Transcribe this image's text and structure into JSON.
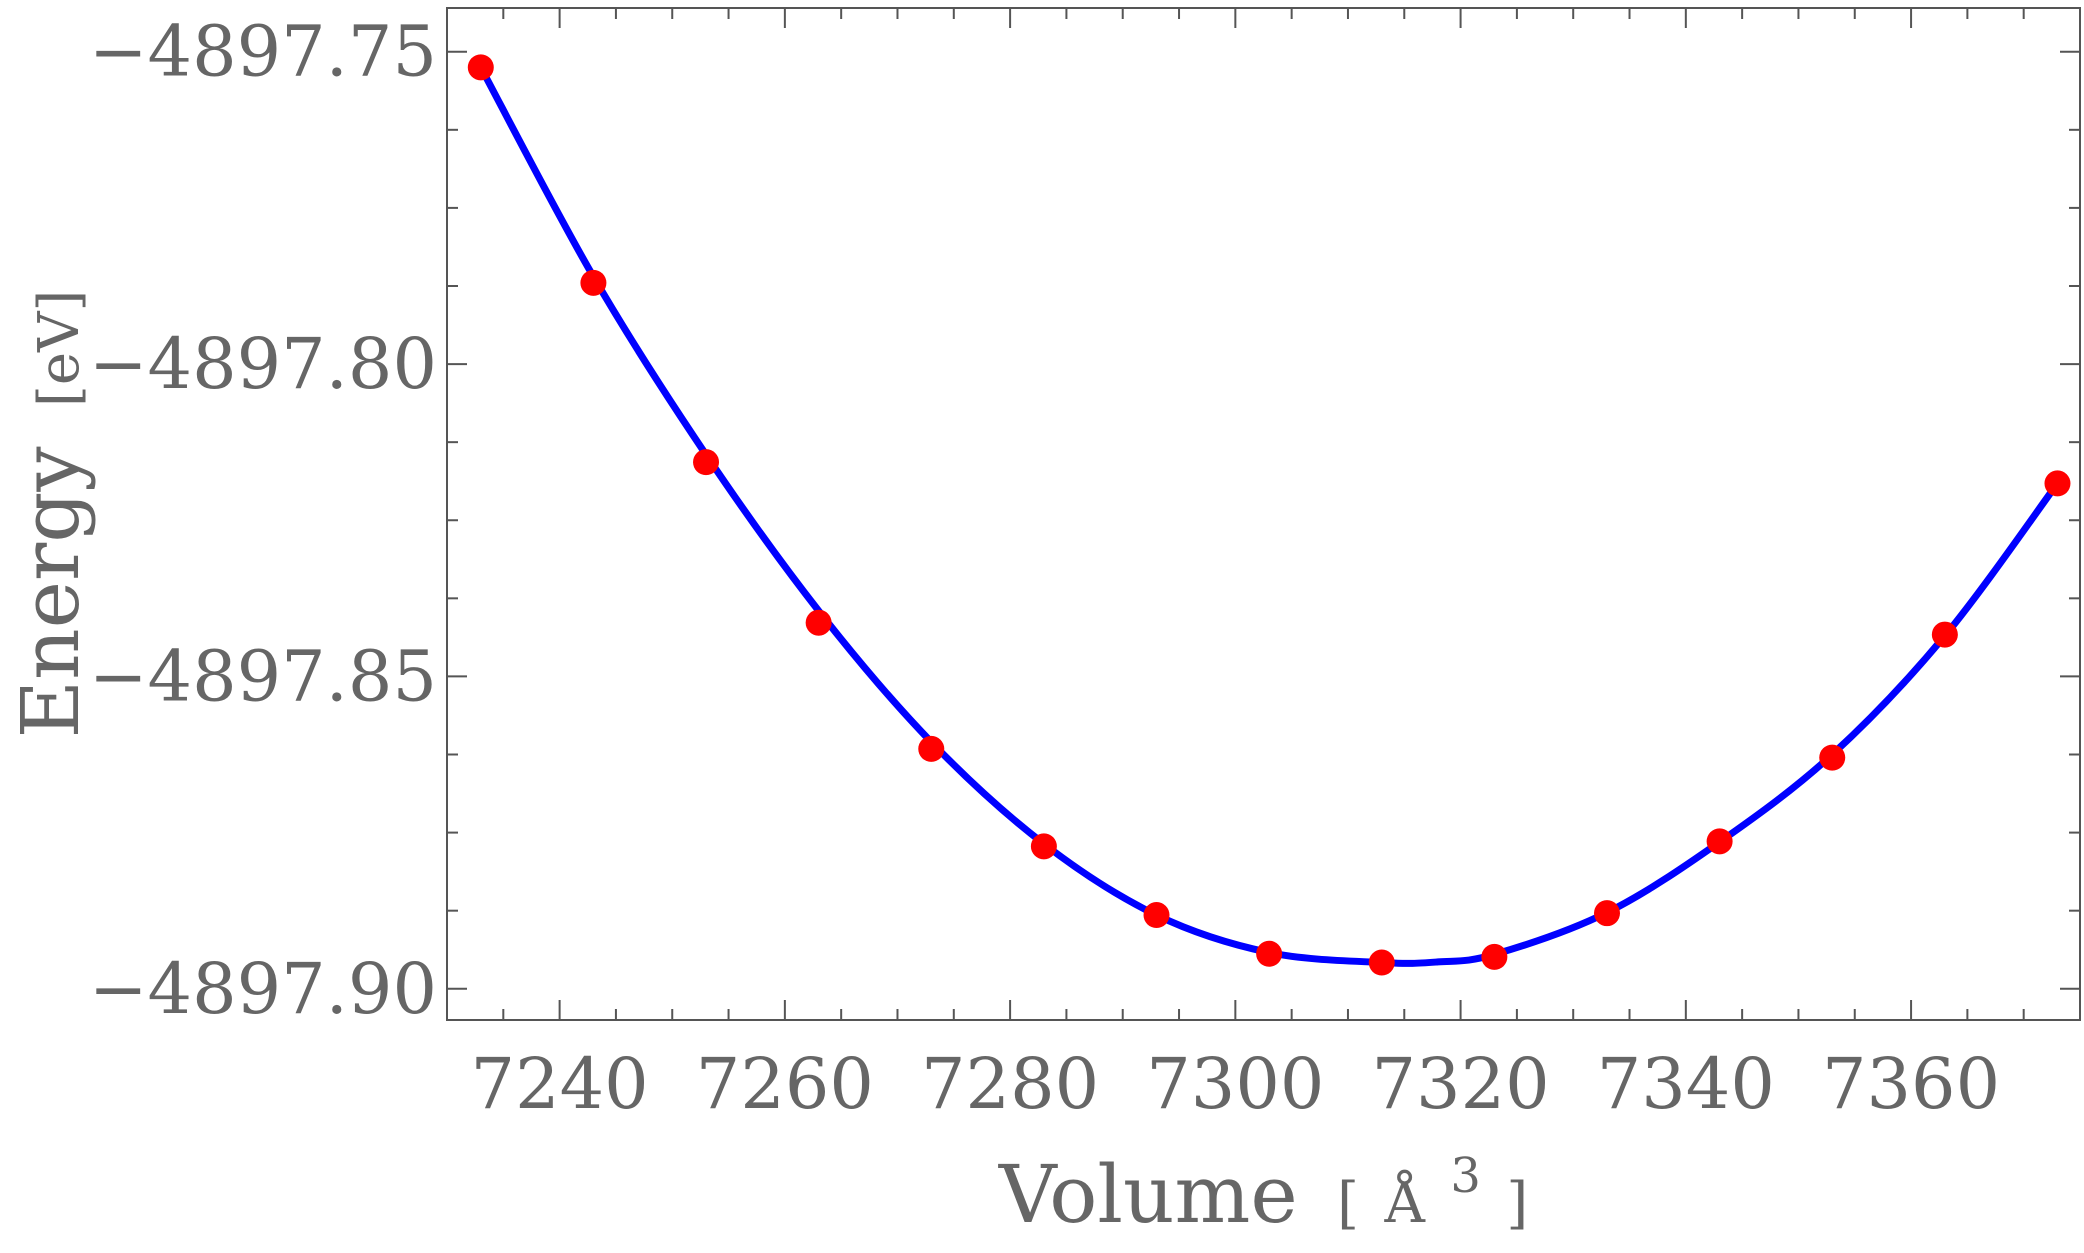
{
  "chart_data": {
    "type": "scatter",
    "title": "",
    "xlabel": "Volume",
    "xlabel_unit_open": "[",
    "xlabel_unit": "Å",
    "xlabel_unit_sup": "3",
    "xlabel_unit_close": "]",
    "ylabel": "Energy",
    "ylabel_unit": "[eV]",
    "xlim": [
      7230,
      7375
    ],
    "ylim": [
      -4897.905,
      -4897.743
    ],
    "x_ticks": [
      7240,
      7260,
      7280,
      7300,
      7320,
      7340,
      7360
    ],
    "x_tick_labels": [
      "7240",
      "7260",
      "7280",
      "7300",
      "7320",
      "7340",
      "7360"
    ],
    "y_ticks": [
      -4897.75,
      -4897.8,
      -4897.85,
      -4897.9
    ],
    "y_tick_labels": [
      "−4897.75",
      "−4897.80",
      "−4897.85",
      "−4897.90"
    ],
    "grid": false,
    "legend": "none",
    "series": [
      {
        "kind": "points",
        "color": "#ff0000",
        "x": [
          7233,
          7243,
          7253,
          7263,
          7273,
          7283,
          7293,
          7303,
          7313,
          7323,
          7333,
          7343,
          7353,
          7363,
          7373
        ],
        "y": [
          -4897.7525,
          -4897.787,
          -4897.8157,
          -4897.8414,
          -4897.8616,
          -4897.8772,
          -4897.8882,
          -4897.8944,
          -4897.8958,
          -4897.8949,
          -4897.8879,
          -4897.8764,
          -4897.863,
          -4897.8433,
          -4897.8191
        ]
      },
      {
        "kind": "fit-curve",
        "color": "#0000ff",
        "x": [
          7233,
          7243,
          7253,
          7263,
          7273,
          7283,
          7293,
          7303,
          7313,
          7318,
          7323,
          7333,
          7343,
          7353,
          7363,
          7373
        ],
        "y": [
          -4897.7525,
          -4897.786,
          -4897.8145,
          -4897.8395,
          -4897.8605,
          -4897.8768,
          -4897.8882,
          -4897.8942,
          -4897.8958,
          -4897.8957,
          -4897.8945,
          -4897.8878,
          -4897.8765,
          -4897.8625,
          -4897.8435,
          -4897.8191
        ]
      }
    ]
  }
}
